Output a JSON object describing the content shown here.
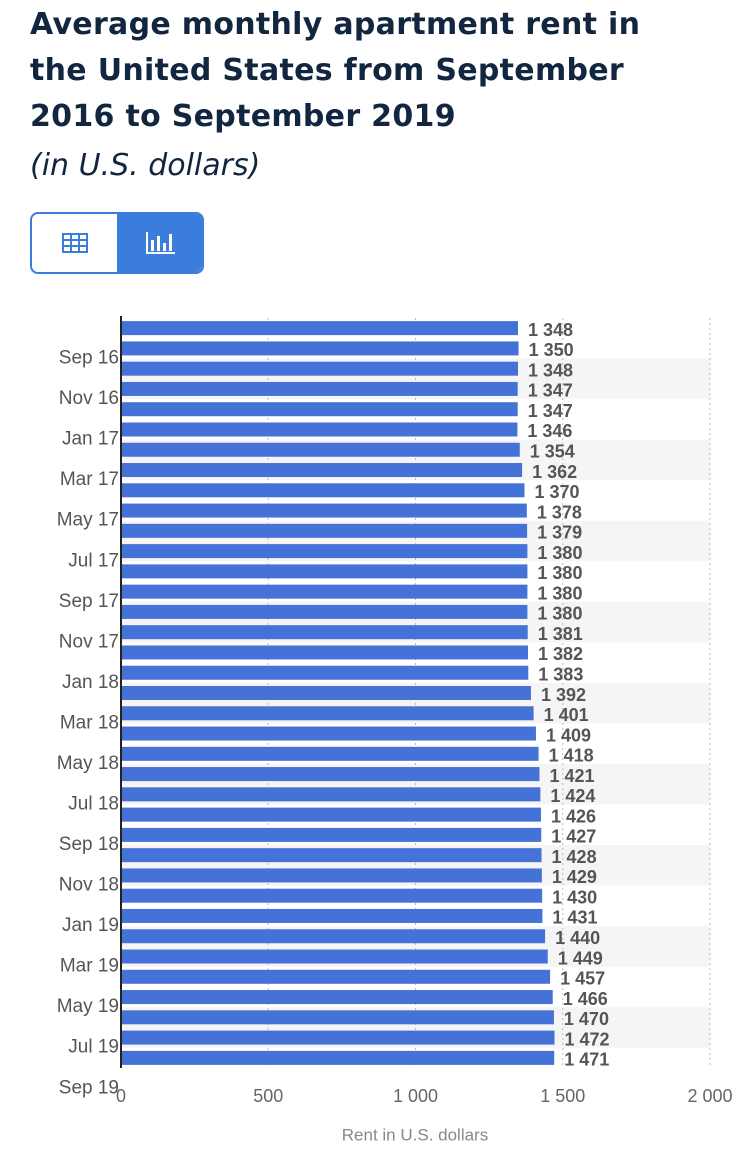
{
  "title": "Average monthly apartment rent in the United States from September 2016 to September 2019",
  "subtitle": "(in U.S. dollars)",
  "chart_data": {
    "type": "bar",
    "orientation": "horizontal",
    "x_label": "Rent in U.S. dollars",
    "color": "#4472d6",
    "categories": [
      "Sep 16",
      null,
      "Nov 16",
      null,
      "Jan 17",
      null,
      "Mar 17",
      null,
      "May 17",
      null,
      "Jul 17",
      null,
      "Sep 17",
      null,
      "Nov 17",
      null,
      "Jan 18",
      null,
      "Mar 18",
      null,
      "May 18",
      null,
      "Jul 18",
      null,
      "Sep 18",
      null,
      "Nov 18",
      null,
      "Jan 19",
      null,
      "Mar 19",
      null,
      "May 19",
      null,
      "Jul 19",
      null,
      "Sep 19"
    ],
    "values": [
      1348,
      1350,
      1348,
      1347,
      1347,
      1346,
      1354,
      1362,
      1370,
      1378,
      1379,
      1380,
      1380,
      1380,
      1380,
      1381,
      1382,
      1383,
      1392,
      1401,
      1409,
      1418,
      1421,
      1424,
      1426,
      1427,
      1428,
      1429,
      1430,
      1431,
      1440,
      1449,
      1457,
      1466,
      1470,
      1472,
      1471
    ],
    "value_labels": [
      "1 348",
      "1 350",
      "1 348",
      "1 347",
      "1 347",
      "1 346",
      "1 354",
      "1 362",
      "1 370",
      "1 378",
      "1 379",
      "1 380",
      "1 380",
      "1 380",
      "1 380",
      "1 381",
      "1 382",
      "1 383",
      "1 392",
      "1 401",
      "1 409",
      "1 418",
      "1 421",
      "1 424",
      "1 426",
      "1 427",
      "1 428",
      "1 429",
      "1 430",
      "1 431",
      "1 440",
      "1 449",
      "1 457",
      "1 466",
      "1 470",
      "1 472",
      "1 471"
    ],
    "xlim": [
      0,
      2000
    ],
    "xticks": [
      0,
      500,
      {
        "value": 1000,
        "label": "1 000"
      },
      {
        "value": 1500,
        "label": "1 500"
      },
      {
        "value": 2000,
        "label": "2 000"
      }
    ],
    "grid": true
  }
}
